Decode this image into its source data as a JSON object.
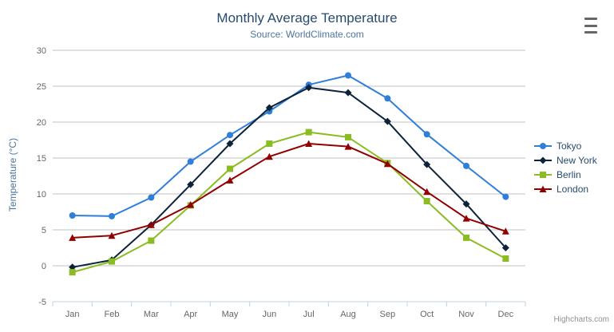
{
  "header": {
    "title": "Monthly Average Temperature",
    "subtitle": "Source: WorldClimate.com"
  },
  "credits": {
    "label": "Highcharts.com"
  },
  "colors": {
    "title_text": "#274b6d",
    "subtitle_text": "#4d759e",
    "axis_title_text": "#4d759e",
    "axis_label_text": "#666666",
    "grid_line": "#c0c0c0",
    "axis_line": "#c0d0e0",
    "legend_text": "#274b6d",
    "credits_text": "#909090"
  },
  "chart_data": {
    "type": "line",
    "title": "Monthly Average Temperature",
    "subtitle": "Source: WorldClimate.com",
    "xlabel": "",
    "ylabel": "Temperature (°C)",
    "ylim": [
      -5,
      30
    ],
    "ytick_interval": 5,
    "ytick_labels": [
      "-5",
      "0",
      "5",
      "10",
      "15",
      "20",
      "25",
      "30"
    ],
    "categories": [
      "Jan",
      "Feb",
      "Mar",
      "Apr",
      "May",
      "Jun",
      "Jul",
      "Aug",
      "Sep",
      "Oct",
      "Nov",
      "Dec"
    ],
    "grid": true,
    "legend_position": "right",
    "series": [
      {
        "name": "Tokyo",
        "color": "#2f7ed8",
        "marker": "circle",
        "values": [
          7.0,
          6.9,
          9.5,
          14.5,
          18.2,
          21.5,
          25.2,
          26.5,
          23.3,
          18.3,
          13.9,
          9.6
        ]
      },
      {
        "name": "New York",
        "color": "#0d233a",
        "marker": "diamond",
        "values": [
          -0.2,
          0.8,
          5.7,
          11.3,
          17.0,
          22.0,
          24.8,
          24.1,
          20.1,
          14.1,
          8.6,
          2.5
        ]
      },
      {
        "name": "Berlin",
        "color": "#8bbc21",
        "marker": "square",
        "values": [
          -0.9,
          0.6,
          3.5,
          8.4,
          13.5,
          17.0,
          18.6,
          17.9,
          14.3,
          9.0,
          3.9,
          1.0
        ]
      },
      {
        "name": "London",
        "color": "#910000",
        "marker": "triangle",
        "values": [
          3.9,
          4.2,
          5.7,
          8.5,
          11.9,
          15.2,
          17.0,
          16.6,
          14.2,
          10.3,
          6.6,
          4.8
        ]
      }
    ]
  }
}
